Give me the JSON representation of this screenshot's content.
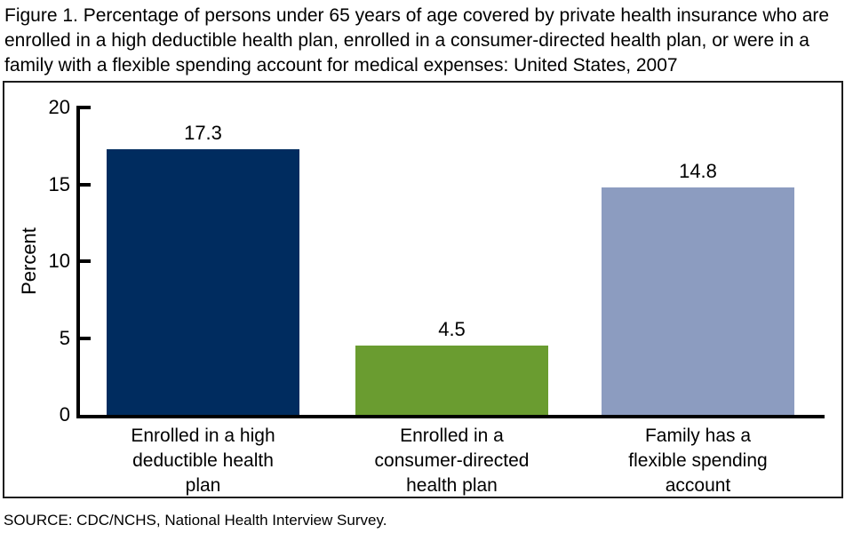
{
  "title": "Figure 1. Percentage of persons under 65 years of age covered by private health insurance who are enrolled in a high deductible health plan, enrolled in a consumer-directed health plan, or were in a family with a flexible spending account for medical expenses: United States, 2007",
  "source": "SOURCE: CDC/NCHS, National Health Interview Survey.",
  "chart_data": {
    "type": "bar",
    "title": "Figure 1. Percentage of persons under 65 years of age covered by private health insurance who are enrolled in a high deductible health plan, enrolled in a consumer-directed health plan, or were in a family with a flexible spending account for medical expenses: United States, 2007",
    "ylabel": "Percent",
    "xlabel": "",
    "ylim": [
      0,
      20
    ],
    "yticks": [
      0,
      5,
      10,
      15,
      20
    ],
    "categories": [
      "Enrolled in a high\ndeductible health\nplan",
      "Enrolled in a\nconsumer-directed\nhealth plan",
      "Family has a\nflexible spending\naccount"
    ],
    "values": [
      17.3,
      4.5,
      14.8
    ],
    "value_labels": [
      "17.3",
      "4.5",
      "14.8"
    ],
    "bar_colors": [
      "#002c5f",
      "#6a9c30",
      "#8c9cc0"
    ],
    "grid": false,
    "legend_position": "none",
    "frame": true
  }
}
